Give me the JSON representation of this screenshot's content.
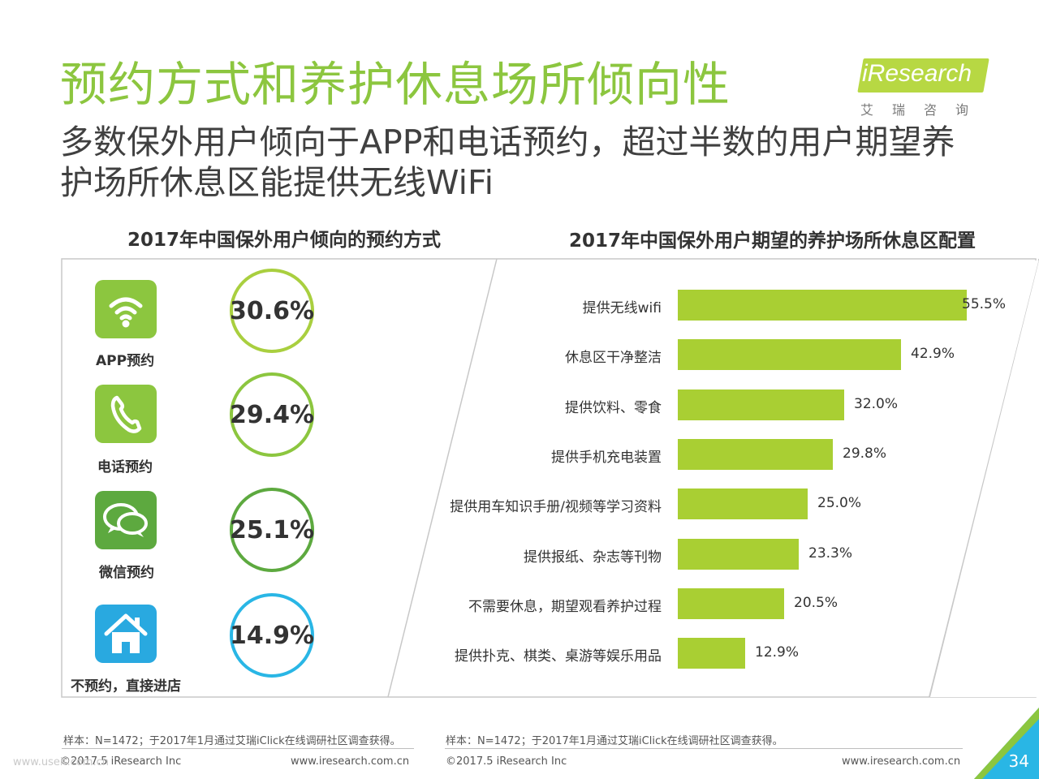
{
  "title": "预约方式和养护休息场所倾向性",
  "subtitle": "多数保外用户倾向于APP和电话预约，超过半数的用户期望养护场所休息区能提供无线WiFi",
  "logo": {
    "brand": "iResearch",
    "brand_cn": "艾瑞咨询"
  },
  "left_chart": {
    "title": "2017年中国保外用户倾向的预约方式",
    "items": [
      {
        "label": "APP预约",
        "value_text": "30.6%",
        "icon": "wifi-icon",
        "tile_color": "#8cc63f",
        "ring_color": "#a9cf3f"
      },
      {
        "label": "电话预约",
        "value_text": "29.4%",
        "icon": "phone-icon",
        "tile_color": "#8cc63f",
        "ring_color": "#8cc63f"
      },
      {
        "label": "微信预约",
        "value_text": "25.1%",
        "icon": "wechat-icon",
        "tile_color": "#5da93f",
        "ring_color": "#5da93f"
      },
      {
        "label": "不预约，直接进店",
        "value_text": "14.9%",
        "icon": "home-icon",
        "tile_color": "#29a9e0",
        "ring_color": "#29b6e5"
      }
    ]
  },
  "chart_data": [
    {
      "type": "pie",
      "title": "2017年中国保外用户倾向的预约方式",
      "categories": [
        "APP预约",
        "电话预约",
        "微信预约",
        "不预约，直接进店"
      ],
      "values": [
        30.6,
        29.4,
        25.1,
        14.9
      ]
    },
    {
      "type": "bar",
      "orientation": "horizontal",
      "title": "2017年中国保外用户期望的养护场所休息区配置",
      "categories": [
        "提供无线wifi",
        "休息区干净整洁",
        "提供饮料、零食",
        "提供手机充电装置",
        "提供用车知识手册/视频等学习资料",
        "提供报纸、杂志等刊物",
        "不需要休息，期望观看养护过程",
        "提供扑克、棋类、桌游等娱乐用品"
      ],
      "values": [
        55.5,
        42.9,
        32.0,
        29.8,
        25.0,
        23.3,
        20.5,
        12.9
      ],
      "value_labels": [
        "55.5%",
        "42.9%",
        "32.0%",
        "29.8%",
        "25.0%",
        "23.3%",
        "20.5%",
        "12.9%"
      ],
      "bar_color": "#a9cf33",
      "grid": false
    }
  ],
  "footer": {
    "note_left": "样本：N=1472；于2017年1月通过艾瑞iClick在线调研社区调查获得。",
    "note_right": "样本：N=1472；于2017年1月通过艾瑞iClick在线调研社区调查获得。",
    "copyright_left": "©2017.5 iResearch Inc",
    "site_left": "www.iresearch.com.cn",
    "copyright_right": "©2017.5 iResearch Inc",
    "site_right": "www.iresearch.com.cn",
    "page_number": "34",
    "watermark": "www.useit.com.cn"
  }
}
